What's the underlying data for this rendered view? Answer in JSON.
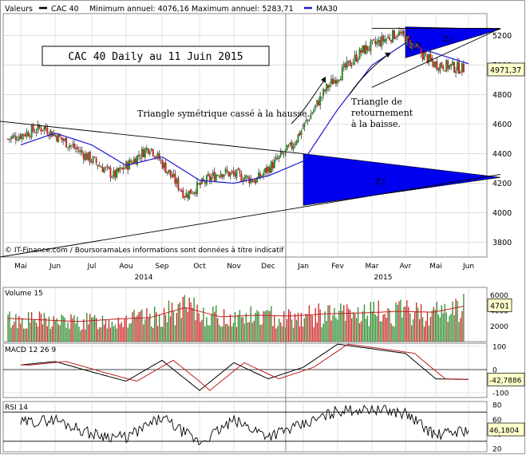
{
  "header": {
    "valeurs_label": "Valeurs",
    "series_name": "CAC 40",
    "stats": "Minimum annuel: 4076,16 Maximum annuel: 5283,71",
    "ma_name": "MA30"
  },
  "title_box": "CAC 40 Daily au 11 Juin 2015",
  "copyright": "© IT-Finance.com / BoursoramaLes informations sont données à titre indicatif",
  "annotations": {
    "sym_triangle": "Triangle symétrique cassé à la hausse.",
    "reversal_line1": "Triangle de",
    "reversal_line2": "retournement",
    "reversal_line3": "à la baisse.",
    "zi_big": "Z.I",
    "zi_small": "Z.I"
  },
  "x_months": [
    "Mai",
    "Jun",
    "Jul",
    "Aou",
    "Sep",
    "Oct",
    "Nov",
    "Dec",
    "Jan",
    "Fev",
    "Mar",
    "Avr",
    "Mai",
    "Jun"
  ],
  "x_years": [
    "2014",
    "2015"
  ],
  "colors": {
    "up": "#2a8a2a",
    "down": "#cc2222",
    "ma": "#1a1acc",
    "zone": "#0000ee",
    "grid": "#c8c8c8"
  },
  "chart_data": [
    {
      "type": "candlestick",
      "panel": "price",
      "title": "CAC 40 Daily au 11 Juin 2015",
      "x_range": [
        "2014-05",
        "2015-06"
      ],
      "ylim": [
        3700,
        5350
      ],
      "yticks": [
        3800,
        4000,
        4200,
        4400,
        4600,
        4800,
        5000,
        5200
      ],
      "last_value_label": "4971,37",
      "series": [
        {
          "name": "CAC 40",
          "monthly_close": [
            4500,
            4580,
            4420,
            4250,
            4450,
            4120,
            4280,
            4220,
            4450,
            4850,
            5100,
            5220,
            5010,
            4971.37
          ]
        },
        {
          "name": "MA30",
          "monthly_values": [
            4460,
            4540,
            4460,
            4320,
            4380,
            4220,
            4200,
            4250,
            4350,
            4700,
            5000,
            5150,
            5080,
            5010
          ]
        }
      ],
      "trendlines": [
        {
          "from": [
            "2014-05",
            4620
          ],
          "to": [
            "2015-01",
            4400
          ]
        },
        {
          "from": [
            "2014-05",
            3700
          ],
          "to": [
            "2015-06",
            4260
          ]
        },
        {
          "from": [
            "2015-03",
            4850
          ],
          "to": [
            "2015-06",
            5250
          ]
        },
        {
          "from": [
            "2015-03",
            5250
          ],
          "to": [
            "2015-06",
            5250
          ]
        }
      ],
      "zones": [
        {
          "label": "Z.I",
          "from_x": "2015-01",
          "to_x": "2015-06",
          "y_top": 4400,
          "y_bottom": 4050,
          "apex_y": 4240
        },
        {
          "label": "Z.I",
          "from_x": "2015-04",
          "to_x": "2015-06",
          "y_top": 5260,
          "y_bottom": 5050,
          "apex_y": 5245
        }
      ],
      "grid": true
    },
    {
      "type": "bar",
      "panel": "volume",
      "title": "Volume 15",
      "yticks": [
        2000,
        4000,
        6000
      ],
      "last_value_label": "4701",
      "monthly_volume": [
        3000,
        2800,
        2600,
        2900,
        3100,
        4400,
        3200,
        3400,
        3300,
        3600,
        3700,
        3900,
        3800,
        4700
      ]
    },
    {
      "type": "line",
      "panel": "macd",
      "title": "MACD 12 26 9",
      "ylim": [
        -100,
        100
      ],
      "yticks": [
        -100,
        0,
        100
      ],
      "last_value_label": "-42,7886",
      "monthly_macd": [
        20,
        35,
        -10,
        -50,
        40,
        -90,
        30,
        -40,
        10,
        110,
        90,
        70,
        -40,
        -42.79
      ]
    },
    {
      "type": "line",
      "panel": "rsi",
      "title": "RSI 14",
      "ylim": [
        20,
        80
      ],
      "yticks": [
        20,
        40,
        60,
        80
      ],
      "bands": [
        30,
        70
      ],
      "last_value_label": "46,1804",
      "monthly_rsi": [
        55,
        60,
        40,
        35,
        62,
        28,
        58,
        38,
        52,
        72,
        75,
        68,
        38,
        46.18
      ]
    }
  ]
}
